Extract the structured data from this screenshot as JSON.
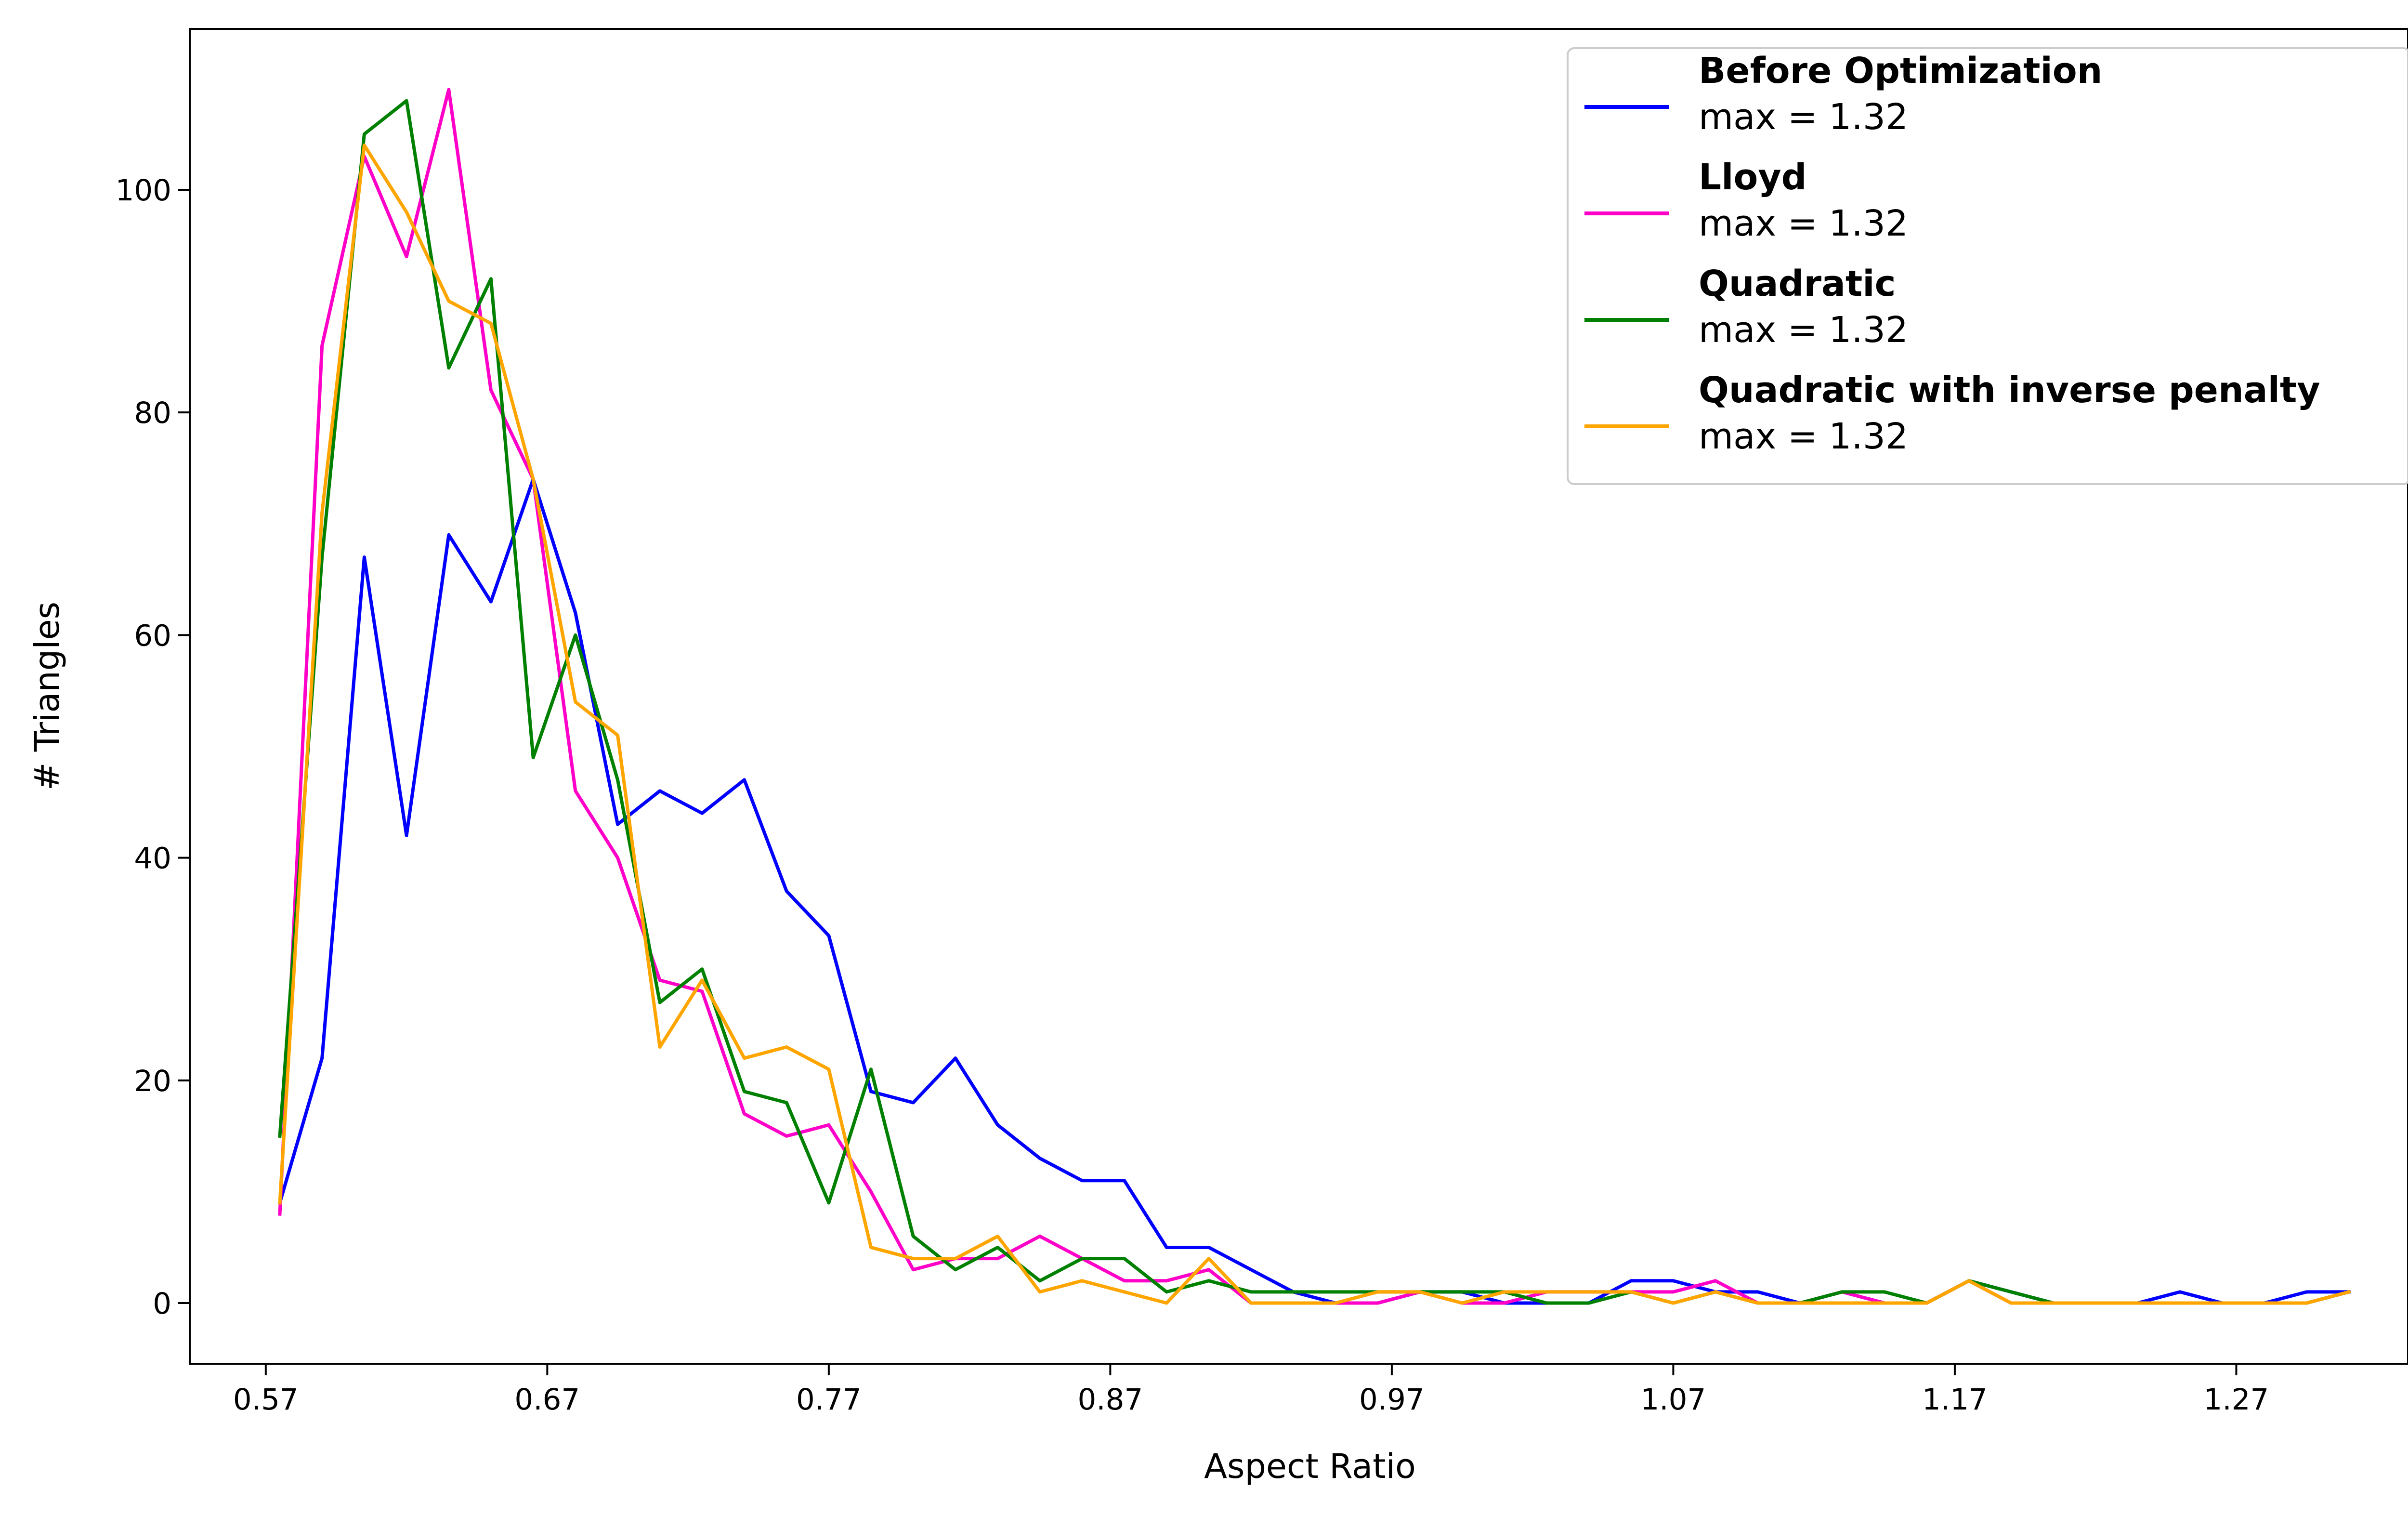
{
  "chart_data": {
    "type": "line",
    "xlabel": "Aspect Ratio",
    "ylabel": "# Triangles",
    "xlim": [
      0.543,
      1.331
    ],
    "ylim": [
      -5.45,
      114.45
    ],
    "x_ticks": [
      0.57,
      0.67,
      0.77,
      0.87,
      0.97,
      1.07,
      1.17,
      1.27
    ],
    "x_tick_labels": [
      "0.57",
      "0.67",
      "0.77",
      "0.87",
      "0.97",
      "1.07",
      "1.17",
      "1.27"
    ],
    "y_ticks": [
      0,
      20,
      40,
      60,
      80,
      100
    ],
    "y_tick_labels": [
      "0",
      "20",
      "40",
      "60",
      "80",
      "100"
    ],
    "grid": false,
    "legend_position": "top-right",
    "x": [
      0.575,
      0.59,
      0.605,
      0.62,
      0.635,
      0.65,
      0.665,
      0.68,
      0.695,
      0.71,
      0.725,
      0.74,
      0.755,
      0.77,
      0.785,
      0.8,
      0.815,
      0.83,
      0.845,
      0.86,
      0.875,
      0.89,
      0.905,
      0.92,
      0.935,
      0.95,
      0.965,
      0.98,
      0.995,
      1.01,
      1.025,
      1.04,
      1.055,
      1.07,
      1.085,
      1.1,
      1.115,
      1.13,
      1.145,
      1.16,
      1.175,
      1.19,
      1.205,
      1.22,
      1.235,
      1.25,
      1.265,
      1.28,
      1.295,
      1.31
    ],
    "series": [
      {
        "name": "Before Optimization",
        "label_line2": "max = 1.32",
        "color": "#0000ff",
        "values": [
          9,
          22,
          67,
          42,
          69,
          63,
          74,
          62,
          43,
          46,
          44,
          47,
          37,
          33,
          19,
          18,
          22,
          16,
          13,
          11,
          11,
          5,
          5,
          3,
          1,
          0,
          0,
          1,
          1,
          0,
          0,
          0,
          2,
          2,
          1,
          1,
          0,
          1,
          0,
          0,
          2,
          1,
          0,
          0,
          0,
          1,
          0,
          0,
          1,
          1
        ]
      },
      {
        "name": "Lloyd",
        "label_line2": "max = 1.32",
        "color": "#ff00c8",
        "values": [
          8,
          86,
          103,
          94,
          109,
          82,
          74,
          46,
          40,
          29,
          28,
          17,
          15,
          16,
          10,
          3,
          4,
          4,
          6,
          4,
          2,
          2,
          3,
          0,
          0,
          0,
          0,
          1,
          0,
          0,
          1,
          1,
          1,
          1,
          2,
          0,
          0,
          1,
          0,
          0,
          2,
          0,
          0,
          0,
          0,
          0,
          0,
          0,
          0,
          1
        ]
      },
      {
        "name": "Quadratic",
        "label_line2": "max = 1.32",
        "color": "#008000",
        "values": [
          15,
          67,
          105,
          108,
          84,
          92,
          49,
          60,
          47,
          27,
          30,
          19,
          18,
          9,
          21,
          6,
          3,
          5,
          2,
          4,
          4,
          1,
          2,
          1,
          1,
          1,
          1,
          1,
          1,
          1,
          0,
          0,
          1,
          0,
          1,
          0,
          0,
          1,
          1,
          0,
          2,
          1,
          0,
          0,
          0,
          0,
          0,
          0,
          0,
          1
        ]
      },
      {
        "name": "Quadratic with inverse penalty",
        "label_line2": "max = 1.32",
        "color": "#ffa500",
        "values": [
          9,
          71,
          104,
          98,
          90,
          88,
          74,
          54,
          51,
          23,
          29,
          22,
          23,
          21,
          5,
          4,
          4,
          6,
          1,
          2,
          1,
          0,
          4,
          0,
          0,
          0,
          1,
          1,
          0,
          1,
          1,
          1,
          1,
          0,
          1,
          0,
          0,
          0,
          0,
          0,
          2,
          0,
          0,
          0,
          0,
          0,
          0,
          0,
          0,
          1
        ]
      }
    ]
  }
}
